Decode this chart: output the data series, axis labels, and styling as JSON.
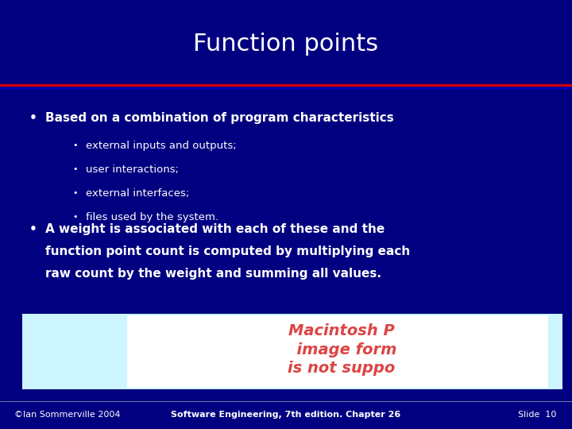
{
  "title": "Function points",
  "title_color": "#FFFFFF",
  "title_fontsize": 22,
  "bg_color": "#000080",
  "header_bg_color": "#000070",
  "red_line_color": "#CC0000",
  "blue_line_color": "#0000CC",
  "bullet1": "Based on a combination of program characteristics",
  "sub_bullets": [
    "external inputs and outputs;",
    "user interactions;",
    "external interfaces;",
    "files used by the system."
  ],
  "bullet2_line1": "A weight is associated with each of these and the",
  "bullet2_line2": "function point count is computed by multiplying each",
  "bullet2_line3": "raw count by the weight and summing all values.",
  "text_color": "#FFFFFF",
  "bullet_color": "#FFFFFF",
  "footer_left": "©Ian Sommerville 2004",
  "footer_center": "Software Engineering, 7th edition. Chapter 26",
  "footer_right": "Slide  10",
  "footer_color": "#FFFFFF",
  "footer_fontsize": 8,
  "image_box_color": "#CCF5FF",
  "image_box2_color": "#FFFFFF",
  "image_text_color": "#DD4444",
  "image_text": "Macintosh P\n  image form\nis not suppo"
}
